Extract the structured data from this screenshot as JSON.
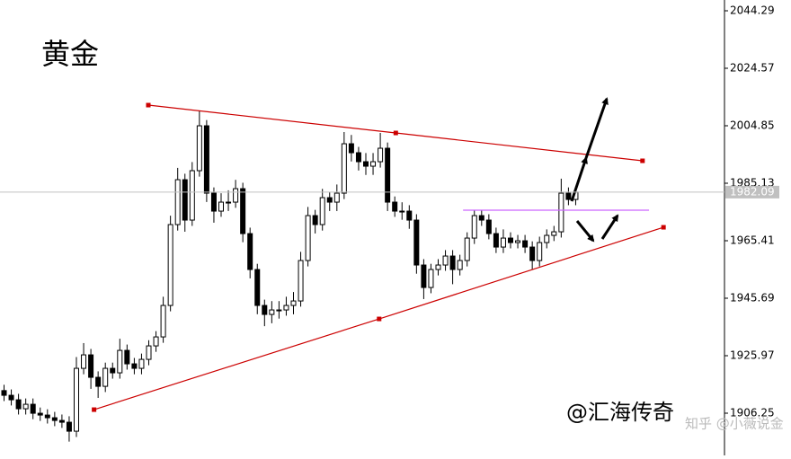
{
  "chart_data": {
    "type": "candlestick",
    "title": "黄金",
    "watermark": "@汇海传奇",
    "credit": "知乎 @小薇说金",
    "ylim": [
      1891.77,
      2047.99
    ],
    "yticks": [
      2044.29,
      2024.57,
      2004.85,
      1985.13,
      1965.41,
      1945.69,
      1925.97,
      1906.25
    ],
    "up_color": "#ffffff",
    "down_color": "#000000",
    "open": [
      1914.0,
      1912.39,
      1910.85,
      1907.77,
      1909.31,
      1906.23,
      1905.61,
      1904.69,
      1903.76,
      1903.15,
      1900.07,
      1921.64,
      1926.26,
      1918.56,
      1915.47,
      1921.64,
      1920.1,
      1927.8,
      1923.18,
      1921.64,
      1924.72,
      1929.34,
      1932.42,
      1943.21,
      1970.95,
      1986.35,
      1972.49,
      1989.44,
      2004.84,
      1981.73,
      1975.57,
      1978.65,
      1978.65,
      1983.27,
      1967.86,
      1955.54,
      1943.21,
      1940.13,
      1941.67,
      1941.67,
      1943.21,
      1944.75,
      1958.62,
      1974.03,
      1970.95,
      1980.19,
      1978.65,
      1981.73,
      1998.68,
      1995.6,
      1992.52,
      1990.98,
      1992.52,
      1997.14,
      1978.65,
      1975.57,
      1975.57,
      1972.49,
      1957.08,
      1949.37,
      1955.54,
      1957.08,
      1960.16,
      1955.54,
      1958.62,
      1966.32,
      1974.03,
      1972.49,
      1967.86,
      1963.24,
      1966.32,
      1964.78,
      1965.4,
      1963.24,
      1958.62,
      1964.78,
      1967.25,
      1968.48,
      1981.73,
      1979.57
    ],
    "high": [
      1916.0,
      1914.4,
      1912.9,
      1911.3,
      1911.3,
      1908.2,
      1907.6,
      1906.7,
      1905.8,
      1905.2,
      1925.5,
      1930.3,
      1928.3,
      1920.6,
      1923.6,
      1923.6,
      1931.8,
      1929.8,
      1925.2,
      1926.7,
      1931.3,
      1934.4,
      1946.2,
      1974.0,
      1990.4,
      1988.4,
      1992.4,
      2010.0,
      2006.8,
      1983.7,
      1981.7,
      1982.7,
      1986.3,
      1985.3,
      1969.9,
      1957.5,
      1945.2,
      1944.7,
      1944.7,
      1946.2,
      1947.8,
      1961.6,
      1977.0,
      1976.0,
      1983.2,
      1982.2,
      1984.7,
      2002.7,
      2001.7,
      1997.6,
      1995.5,
      1995.5,
      2002.4,
      1999.1,
      1980.6,
      1978.6,
      1977.6,
      1974.5,
      1959.1,
      1957.5,
      1959.1,
      1962.2,
      1962.2,
      1960.6,
      1968.3,
      1976.0,
      1976.0,
      1974.5,
      1969.9,
      1969.3,
      1968.3,
      1967.4,
      1967.4,
      1965.2,
      1966.8,
      1969.3,
      1970.5,
      1986.7,
      1983.7,
      1984.1
    ],
    "low": [
      1910.4,
      1908.9,
      1905.8,
      1905.8,
      1904.2,
      1903.6,
      1902.7,
      1901.8,
      1901.2,
      1896.5,
      1898.1,
      1919.6,
      1914.6,
      1911.5,
      1913.5,
      1918.1,
      1918.1,
      1921.2,
      1919.6,
      1919.6,
      1922.7,
      1927.3,
      1930.4,
      1941.2,
      1968.9,
      1968.5,
      1970.5,
      1987.4,
      1978.7,
      1971.6,
      1973.6,
      1975.6,
      1976.7,
      1964.9,
      1952.5,
      1940.2,
      1936.1,
      1937.1,
      1938.7,
      1939.7,
      1940.2,
      1942.8,
      1956.6,
      1967.9,
      1968.9,
      1975.6,
      1975.6,
      1979.7,
      1992.6,
      1989.5,
      1988.0,
      1988.0,
      1990.5,
      1975.6,
      1973.6,
      1972.6,
      1969.5,
      1954.1,
      1945.4,
      1947.4,
      1953.5,
      1955.1,
      1950.5,
      1953.5,
      1956.6,
      1964.3,
      1970.5,
      1965.9,
      1961.2,
      1961.2,
      1962.8,
      1962.8,
      1961.2,
      1955.6,
      1956.6,
      1962.8,
      1965.3,
      1966.5,
      1977.6,
      1977.6
    ],
    "close": [
      1912.39,
      1910.85,
      1907.77,
      1909.31,
      1906.23,
      1905.61,
      1904.69,
      1903.76,
      1903.15,
      1900.07,
      1921.64,
      1926.26,
      1918.56,
      1915.47,
      1921.64,
      1920.1,
      1927.8,
      1923.18,
      1921.64,
      1924.72,
      1929.34,
      1932.42,
      1943.21,
      1970.95,
      1986.35,
      1972.49,
      1989.44,
      2004.84,
      1981.73,
      1975.57,
      1978.65,
      1978.65,
      1983.27,
      1967.86,
      1955.54,
      1943.21,
      1940.13,
      1941.67,
      1941.67,
      1943.21,
      1944.75,
      1958.62,
      1974.03,
      1970.95,
      1980.19,
      1978.65,
      1981.73,
      1998.68,
      1995.6,
      1992.52,
      1990.98,
      1992.52,
      1997.14,
      1978.65,
      1975.57,
      1975.57,
      1972.49,
      1957.08,
      1949.37,
      1955.54,
      1957.08,
      1960.16,
      1955.54,
      1958.62,
      1966.32,
      1974.03,
      1972.49,
      1967.86,
      1963.24,
      1966.32,
      1964.78,
      1965.4,
      1963.24,
      1958.62,
      1964.78,
      1967.25,
      1968.48,
      1981.73,
      1979.57,
      1982.09
    ],
    "trendlines": [
      {
        "color": "#cc0000",
        "markers": true,
        "x": [
          20,
          54.2,
          88.3
        ],
        "y": [
          2011.93,
          2002.38,
          1992.83
        ]
      },
      {
        "color": "#cc0000",
        "markers": true,
        "x": [
          12.5,
          51.9,
          91.2
        ],
        "y": [
          1907.47,
          1938.59,
          1970.02
        ]
      },
      {
        "color": "#cc66ff",
        "markers": false,
        "x": [
          63.5,
          89.2
        ],
        "y": [
          1975.88,
          1975.88
        ]
      }
    ]
  }
}
